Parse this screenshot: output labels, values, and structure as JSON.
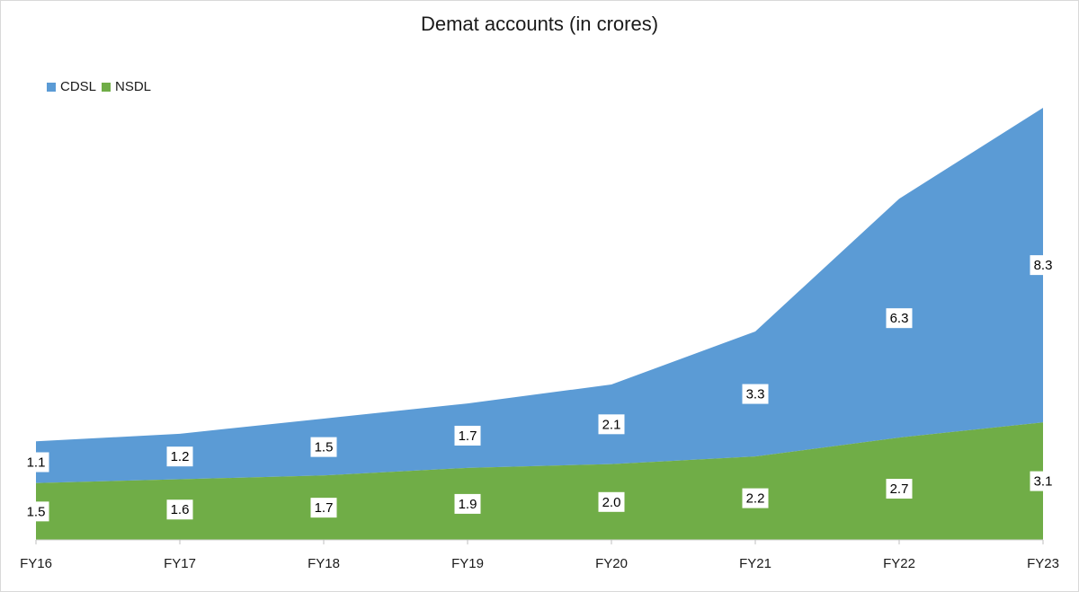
{
  "chart_data": {
    "type": "area",
    "stacked": true,
    "title": "Demat accounts (in crores)",
    "categories": [
      "FY16",
      "FY17",
      "FY18",
      "FY19",
      "FY20",
      "FY21",
      "FY22",
      "FY23"
    ],
    "series": [
      {
        "name": "NSDL",
        "color": "#70ad47",
        "values": [
          1.5,
          1.6,
          1.7,
          1.9,
          2.0,
          2.2,
          2.7,
          3.1
        ],
        "labels": [
          "1.5",
          "1.6",
          "1.7",
          "1.9",
          "2.0",
          "2.2",
          "2.7",
          "3.1"
        ]
      },
      {
        "name": "CDSL",
        "color": "#5b9bd5",
        "values": [
          1.1,
          1.2,
          1.5,
          1.7,
          2.1,
          3.3,
          6.3,
          8.3
        ],
        "labels": [
          "1.1",
          "1.2",
          "1.5",
          "1.7",
          "2.1",
          "3.3",
          "6.3",
          "8.3"
        ]
      }
    ],
    "legend_order": [
      "CDSL",
      "NSDL"
    ],
    "legend_position": "top-left",
    "grid": false,
    "ylim": [
      0,
      11.4
    ]
  }
}
